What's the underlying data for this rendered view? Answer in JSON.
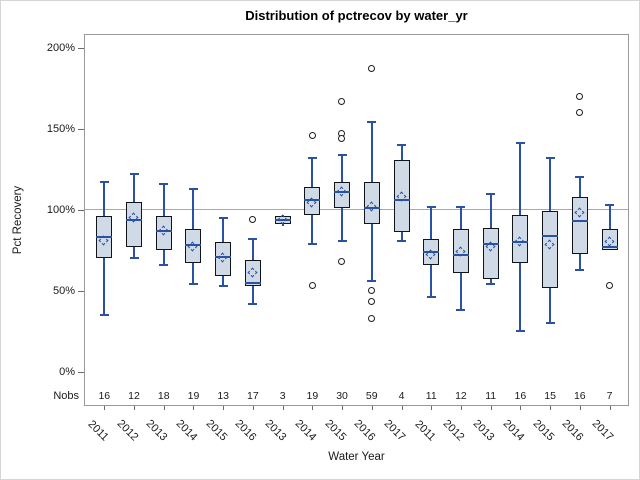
{
  "title": "Distribution of pctrecov by water_yr",
  "y_axis": {
    "label": "Pct Recovery",
    "tick_labels": [
      "0%",
      "50%",
      "100%",
      "150%",
      "200%"
    ],
    "tick_values": [
      0,
      50,
      100,
      150,
      200
    ]
  },
  "x_axis": {
    "label": "Water Year"
  },
  "nobs_label": "Nobs",
  "colors": {
    "box_fill": "#d0d9e6",
    "box_border": "#10151c",
    "whisker": "#2b52a0",
    "median": "#2b52a0",
    "mean_marker": "#2b52a0",
    "outlier": "#1f1f1f",
    "reference_line": "#a9a9a9",
    "frame": "#999999",
    "tick": "#6b6b6b",
    "text": "#1a1a1a"
  },
  "chart_data": {
    "type": "box",
    "title": "Distribution of pctrecov by water_yr",
    "xlabel": "Water Year",
    "ylabel": "Pct Recovery",
    "ylim": [
      0,
      200
    ],
    "y_tick_format": "percent",
    "reference_line": 100,
    "mean_marker": "diamond",
    "grid": false,
    "groups": [
      {
        "year": "2011",
        "nobs": 16,
        "low": 35,
        "q1": 70,
        "median": 83,
        "q3": 96,
        "high": 117,
        "mean": 81,
        "outliers": []
      },
      {
        "year": "2012",
        "nobs": 12,
        "low": 70,
        "q1": 77,
        "median": 94,
        "q3": 105,
        "high": 122,
        "mean": 95,
        "outliers": []
      },
      {
        "year": "2013",
        "nobs": 18,
        "low": 66,
        "q1": 75,
        "median": 87,
        "q3": 96,
        "high": 116,
        "mean": 87,
        "outliers": []
      },
      {
        "year": "2014",
        "nobs": 19,
        "low": 54,
        "q1": 67,
        "median": 78,
        "q3": 88,
        "high": 113,
        "mean": 77,
        "outliers": []
      },
      {
        "year": "2015",
        "nobs": 13,
        "low": 53,
        "q1": 59,
        "median": 71,
        "q3": 80,
        "high": 95,
        "mean": 70,
        "outliers": []
      },
      {
        "year": "2016",
        "nobs": 17,
        "low": 42,
        "q1": 53,
        "median": 55,
        "q3": 69,
        "high": 82,
        "mean": 61,
        "outliers": [
          94
        ]
      },
      {
        "year": "2013",
        "nobs": 3,
        "low": 90,
        "q1": 91,
        "median": 94,
        "q3": 96,
        "high": 97,
        "mean": 94,
        "outliers": []
      },
      {
        "year": "2014",
        "nobs": 19,
        "low": 79,
        "q1": 97,
        "median": 106,
        "q3": 114,
        "high": 132,
        "mean": 104,
        "outliers": [
          146,
          53
        ]
      },
      {
        "year": "2015",
        "nobs": 30,
        "low": 81,
        "q1": 101,
        "median": 111,
        "q3": 117,
        "high": 134,
        "mean": 111,
        "outliers": [
          167,
          147,
          144,
          68
        ]
      },
      {
        "year": "2016",
        "nobs": 59,
        "low": 56,
        "q1": 91,
        "median": 101,
        "q3": 117,
        "high": 154,
        "mean": 102,
        "outliers": [
          187,
          50,
          43,
          33
        ]
      },
      {
        "year": "2017",
        "nobs": 4,
        "low": 81,
        "q1": 86,
        "median": 106,
        "q3": 131,
        "high": 140,
        "mean": 108,
        "outliers": []
      },
      {
        "year": "2011",
        "nobs": 11,
        "low": 46,
        "q1": 66,
        "median": 74,
        "q3": 82,
        "high": 102,
        "mean": 72,
        "outliers": []
      },
      {
        "year": "2012",
        "nobs": 12,
        "low": 38,
        "q1": 61,
        "median": 72,
        "q3": 88,
        "high": 102,
        "mean": 74,
        "outliers": []
      },
      {
        "year": "2013",
        "nobs": 11,
        "low": 54,
        "q1": 57,
        "median": 79,
        "q3": 89,
        "high": 110,
        "mean": 77,
        "outliers": []
      },
      {
        "year": "2014",
        "nobs": 16,
        "low": 25,
        "q1": 67,
        "median": 80,
        "q3": 97,
        "high": 141,
        "mean": 80,
        "outliers": []
      },
      {
        "year": "2015",
        "nobs": 15,
        "low": 30,
        "q1": 52,
        "median": 84,
        "q3": 99,
        "high": 132,
        "mean": 78,
        "outliers": []
      },
      {
        "year": "2016",
        "nobs": 16,
        "low": 63,
        "q1": 73,
        "median": 93,
        "q3": 108,
        "high": 120,
        "mean": 98,
        "outliers": [
          170,
          160
        ]
      },
      {
        "year": "2017",
        "nobs": 7,
        "low": 75,
        "q1": 75,
        "median": 77,
        "q3": 88,
        "high": 103,
        "mean": 80,
        "outliers": [
          53
        ]
      }
    ]
  }
}
